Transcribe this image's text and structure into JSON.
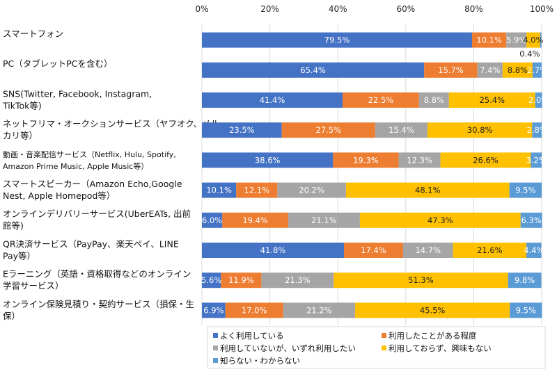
{
  "chart_data": {
    "type": "bar",
    "orientation": "horizontal",
    "stacked": true,
    "title": "",
    "xlabel": "",
    "ylabel": "",
    "xlim": [
      0,
      100
    ],
    "x_ticks": [
      "0%",
      "20%",
      "40%",
      "60%",
      "80%",
      "100%"
    ],
    "grid": true,
    "legend_position": "bottom-right",
    "categories": [
      "スマートフォン",
      "PC（タブレットPCを含む）",
      "SNS(Twitter, Facebook, Instagram, TikTok等)",
      "ネットフリマ・オークションサービス（ヤフオク、メルカリ等）",
      "動画・音楽配信サービス（Netflix, Hulu, Spotify, Amazon Prime Music, Apple Music等）",
      "スマートスピーカー（Amazon Echo,Google Nest, Apple Homepod等）",
      "オンラインデリバリーサービス(UberEATs, 出前館等)",
      "QR決済サービス（PayPay、楽天ペイ、LINE Pay等）",
      "Eラーニング（英語・資格取得などのオンライン学習サービス）",
      "オンライン保険見積り・契約サービス（損保・生保）"
    ],
    "category_lines": [
      [
        "スマートフォン"
      ],
      [
        "PC（タブレットPCを含む）"
      ],
      [
        "SNS(Twitter, Facebook, Instagram,",
        "TikTok等)"
      ],
      [
        "ネットフリマ・オークションサービス（ヤフオク、メル",
        "カリ等）"
      ],
      [
        "動画・音楽配信サービス（Netflix, Hulu, Spotify,",
        "Amazon Prime Music, Apple Music等）"
      ],
      [
        "スマートスピーカー（Amazon Echo,Google",
        "Nest, Apple Homepod等）"
      ],
      [
        "オンラインデリバリーサービス(UberEATs, 出前",
        "館等)"
      ],
      [
        "QR決済サービス（PayPay、楽天ペイ、LINE",
        "Pay等）"
      ],
      [
        "Eラーニング（英語・資格取得などのオンライン",
        "学習サービス）"
      ],
      [
        "オンライン保険見積り・契約サービス（損保・生",
        "保）"
      ]
    ],
    "series": [
      {
        "name": "よく利用している",
        "color": "#4472C4",
        "values": [
          79.5,
          65.4,
          41.4,
          23.5,
          38.6,
          10.1,
          6.0,
          41.8,
          5.6,
          6.9
        ],
        "labels": [
          "79.5%",
          "65.4%",
          "41.4%",
          "23.5%",
          "38.6%",
          "10.1%",
          "6.0%",
          "41.8%",
          "5.6%",
          "6.9%"
        ]
      },
      {
        "name": "利用したことがある程度",
        "color": "#ED7D31",
        "values": [
          10.1,
          15.7,
          22.5,
          27.5,
          19.3,
          12.1,
          19.4,
          17.4,
          11.9,
          17.0
        ],
        "labels": [
          "10.1%",
          "15.7%",
          "22.5%",
          "27.5%",
          "19.3%",
          "12.1%",
          "19.4%",
          "17.4%",
          "11.9%",
          "17.0%"
        ]
      },
      {
        "name": "利用していないが、いずれ利用したい",
        "color": "#A5A5A5",
        "values": [
          5.9,
          7.4,
          8.8,
          15.4,
          12.3,
          20.2,
          21.1,
          14.7,
          21.3,
          21.2
        ],
        "labels": [
          "5.9%",
          "7.4%",
          "8.8%",
          "15.4%",
          "12.3%",
          "20.2%",
          "21.1%",
          "14.7%",
          "21.3%",
          "21.2%"
        ]
      },
      {
        "name": "利用しておらず、興味もない",
        "color": "#FFC000",
        "values": [
          4.0,
          8.8,
          25.4,
          30.8,
          26.6,
          48.1,
          47.3,
          21.6,
          51.3,
          45.5
        ],
        "labels": [
          "4.0%",
          "8.8%",
          "25.4%",
          "30.8%",
          "26.6%",
          "48.1%",
          "47.3%",
          "21.6%",
          "51.3%",
          "45.5%"
        ]
      },
      {
        "name": "知らない・わからない",
        "color": "#5B9BD5",
        "values": [
          0.4,
          2.7,
          2.0,
          2.8,
          3.2,
          9.5,
          6.3,
          4.4,
          9.8,
          9.5
        ],
        "labels": [
          "0.4%",
          "2.7%",
          "2.0%",
          "2.8%",
          "3.2%",
          "9.5%",
          "6.3%",
          "4.4%",
          "9.8%",
          "9.5%"
        ]
      }
    ]
  }
}
